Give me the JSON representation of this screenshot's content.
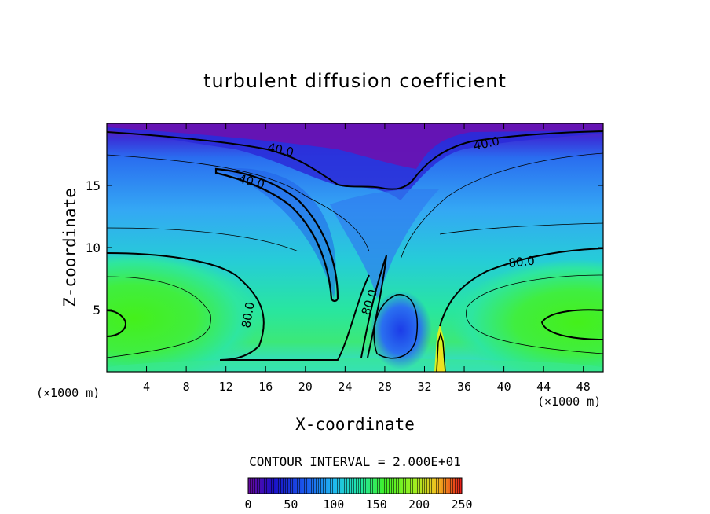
{
  "chart_data": {
    "type": "heatmap",
    "title": "turbulent diffusion coefficient",
    "xlabel": "X-coordinate",
    "ylabel": "Z-coordinate",
    "x_unit_label": "(×1000 m)",
    "x_unit_label_right": "(×1000 m)",
    "xlim": [
      0,
      50
    ],
    "ylim": [
      0,
      20
    ],
    "x_ticks": [
      "4",
      "8",
      "12",
      "16",
      "20",
      "24",
      "28",
      "32",
      "36",
      "40",
      "44",
      "48"
    ],
    "y_ticks": [
      "5",
      "10",
      "15"
    ],
    "contour_interval_text": "CONTOUR INTERVAL = 2.000E+01",
    "contour_interval": 20,
    "contour_labels": [
      "40.0",
      "40.0",
      "40.0",
      "80.0",
      "80.0",
      "80.0"
    ],
    "colorbar": {
      "range": [
        0,
        250
      ],
      "ticks": [
        "0",
        "50",
        "100",
        "150",
        "200",
        "250"
      ]
    },
    "colors": {
      "low": "#7a0fa8",
      "dark_blue": "#1a1ad0",
      "blue": "#2f7cf0",
      "cyan": "#20c8f0",
      "teal": "#22e3b0",
      "green": "#3cf028",
      "yellow": "#e8f020",
      "red": "#e02020"
    }
  }
}
